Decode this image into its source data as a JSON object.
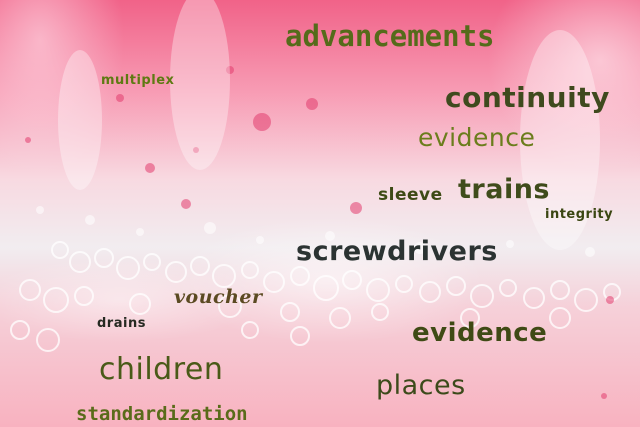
{
  "background": {
    "description_colors": {
      "pink_top": "#f05a82",
      "white_cells": "#f2eef0",
      "pink_bottom": "#f8b2c0"
    }
  },
  "words": {
    "advancements": "advancements",
    "multiplex": "multiplex",
    "continuity": "continuity",
    "evidence_1": "evidence",
    "sleeve": "sleeve",
    "trains": "trains",
    "integrity": "integrity",
    "screwdrivers": "screwdrivers",
    "voucher": "voucher",
    "drains": "drains",
    "evidence_2": "evidence",
    "children": "children",
    "places": "places",
    "standardization": "standardization"
  }
}
